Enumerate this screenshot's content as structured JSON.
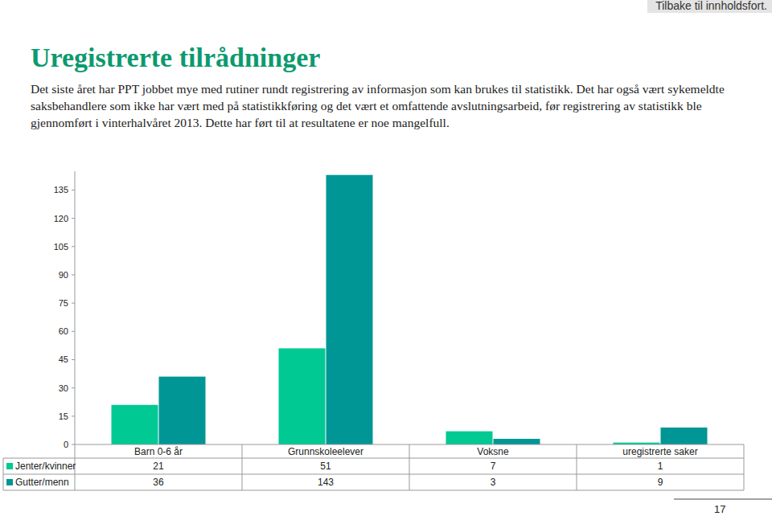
{
  "page": {
    "link": "Tilbake til innholdsfort.",
    "title": "Uregistrerte tilrådninger",
    "text": "Det siste året har PPT jobbet mye med rutiner rundt registrering av informasjon som kan brukes til statistikk. Det har også vært sykemeldte saksbehandlere som ikke har vært med på statistikkføring og det vært et omfattende avslutningsarbeid, før registrering av statistikk ble gjennomført i vinterhalvåret 2013. Dette har ført til at resultatene er noe mangelfull.",
    "number": 17
  },
  "chart_data": {
    "type": "bar",
    "categories": [
      "Barn 0-6 år",
      "Grunnskoleelever",
      "Voksne",
      "uregistrerte saker"
    ],
    "series": [
      {
        "name": "Jenter/kvinner",
        "color": "#00c994",
        "values": [
          21,
          51,
          7,
          1
        ]
      },
      {
        "name": "Gutter/menn",
        "color": "#009696",
        "values": [
          36,
          143,
          3,
          9
        ]
      }
    ],
    "ylim": [
      0,
      145
    ],
    "yticks": [
      0,
      15,
      30,
      45,
      60,
      75,
      90,
      105,
      120,
      135
    ],
    "grid": false
  }
}
